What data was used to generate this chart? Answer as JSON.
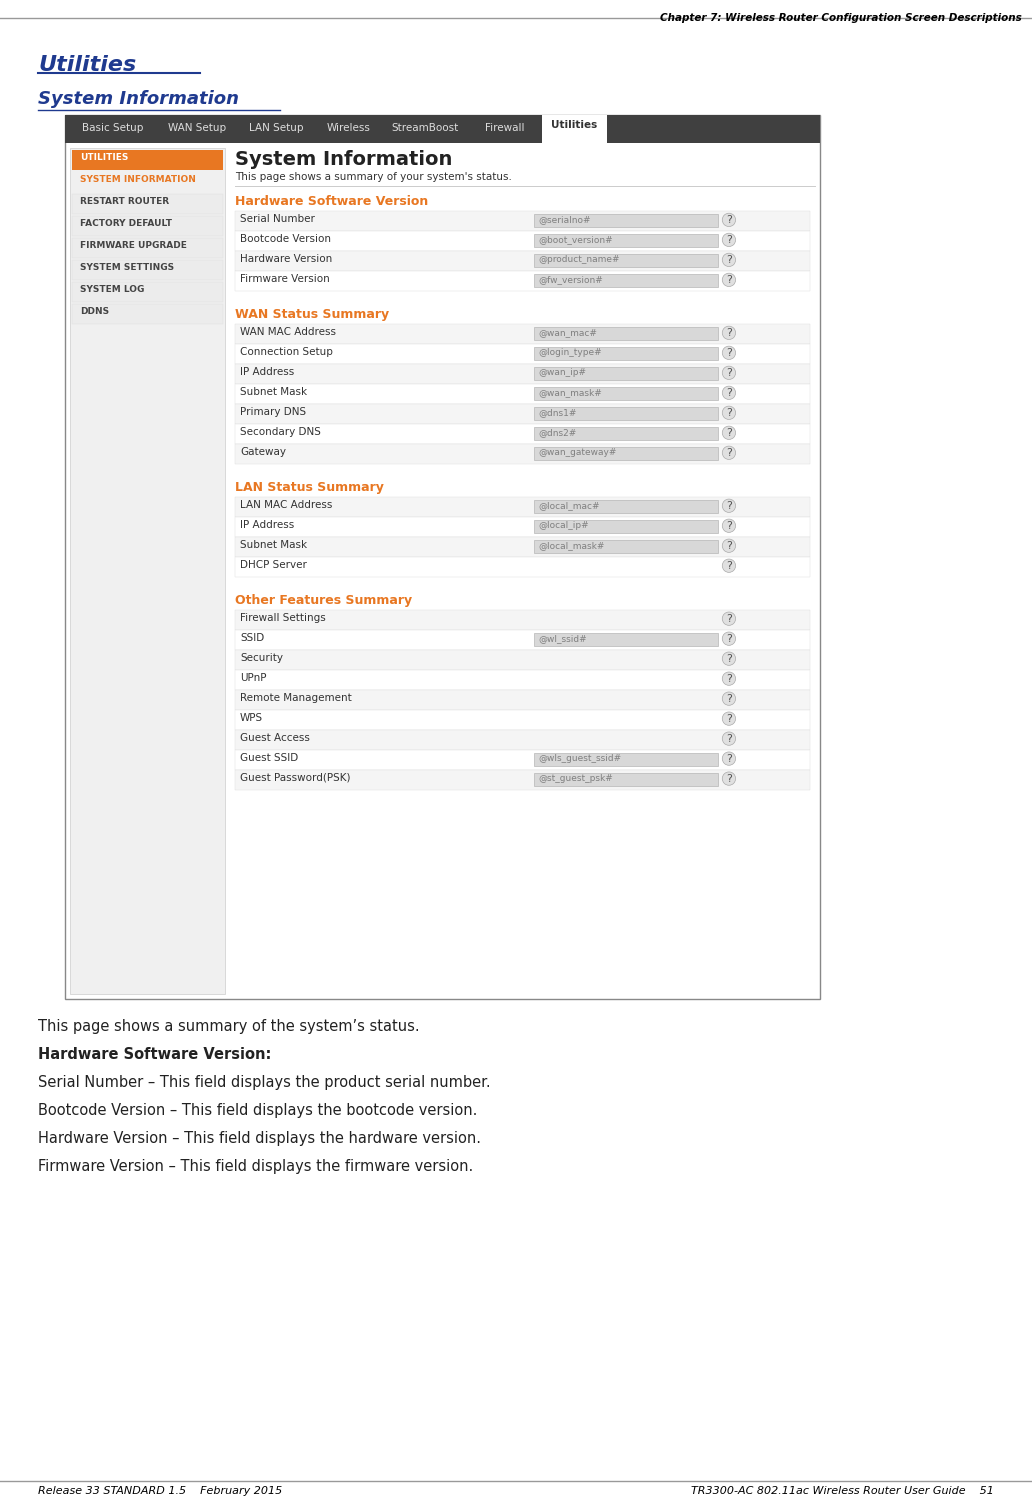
{
  "page_title_right": "Chapter 7: Wireless Router Configuration Screen Descriptions",
  "section_title": "Utilities",
  "subsection_title": "System Information",
  "footer_left": "Release 33 STANDARD 1.5    February 2015",
  "footer_right": "TR3300-AC 802.11ac Wireless Router User Guide    51",
  "nav_tabs": [
    "Basic Setup",
    "WAN Setup",
    "LAN Setup",
    "Wireless",
    "StreamBoost",
    "Firewall",
    "Utilities"
  ],
  "nav_tab_active": "Utilities",
  "sidebar_items": [
    "UTILITIES",
    "SYSTEM INFORMATION",
    "RESTART ROUTER",
    "FACTORY DEFAULT",
    "FIRMWARE UPGRADE",
    "SYSTEM SETTINGS",
    "SYSTEM LOG",
    "DDNS"
  ],
  "sidebar_active": "UTILITIES",
  "sidebar_highlight": "SYSTEM INFORMATION",
  "ui_title": "System Information",
  "ui_desc": "This page shows a summary of your system's status.",
  "hw_section": "Hardware Software Version",
  "hw_rows": [
    [
      "Serial Number",
      "@serialno#"
    ],
    [
      "Bootcode Version",
      "@boot_version#"
    ],
    [
      "Hardware Version",
      "@product_name#"
    ],
    [
      "Firmware Version",
      "@fw_version#"
    ]
  ],
  "wan_section": "WAN Status Summary",
  "wan_rows": [
    [
      "WAN MAC Address",
      "@wan_mac#"
    ],
    [
      "Connection Setup",
      "@login_type#"
    ],
    [
      "IP Address",
      "@wan_ip#"
    ],
    [
      "Subnet Mask",
      "@wan_mask#"
    ],
    [
      "Primary DNS",
      "@dns1#"
    ],
    [
      "Secondary DNS",
      "@dns2#"
    ],
    [
      "Gateway",
      "@wan_gateway#"
    ]
  ],
  "lan_section": "LAN Status Summary",
  "lan_rows": [
    [
      "LAN MAC Address",
      "@local_mac#"
    ],
    [
      "IP Address",
      "@local_ip#"
    ],
    [
      "Subnet Mask",
      "@local_mask#"
    ],
    [
      "DHCP Server",
      null
    ]
  ],
  "other_section": "Other Features Summary",
  "other_rows": [
    [
      "Firewall Settings",
      null
    ],
    [
      "SSID",
      "@wl_ssid#"
    ],
    [
      "Security",
      null
    ],
    [
      "UPnP",
      null
    ],
    [
      "Remote Management",
      null
    ],
    [
      "WPS",
      null
    ],
    [
      "Guest Access",
      null
    ],
    [
      "Guest SSID",
      "@wls_guest_ssid#"
    ],
    [
      "Guest Password(PSK)",
      "@st_guest_psk#"
    ]
  ],
  "body_text": [
    "This page shows a summary of the system’s status.",
    "Hardware Software Version:",
    "Serial Number – This field displays the product serial number.",
    "Bootcode Version – This field displays the bootcode version.",
    "Hardware Version – This field displays the hardware version.",
    "Firmware Version – This field displays the firmware version."
  ],
  "orange_color": "#E87722",
  "dark_blue_color": "#1F3A8F",
  "nav_bg_color": "#404040",
  "nav_text_color": "#FFFFFF",
  "sidebar_active_bg": "#E87722",
  "sidebar_highlight_color": "#E87722",
  "sidebar_bg": "#F0F0F0",
  "ui_bg": "#FFFFFF",
  "row_alt_color": "#F5F5F5",
  "row_main_color": "#FFFFFF",
  "field_bg": "#D8D8D8",
  "field_text": "#808080",
  "border_color": "#CCCCCC"
}
